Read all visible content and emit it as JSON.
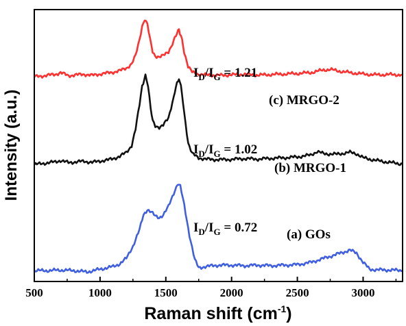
{
  "chart_data": {
    "type": "line",
    "xlabel": "Raman shift (cm",
    "xlabel_sup": "-1",
    "xlabel_end": ")",
    "ylabel": "Intensity (a.u.)",
    "xlim": [
      500,
      3300
    ],
    "ylim": [
      0,
      1
    ],
    "xticks": [
      "500",
      "1000",
      "1500",
      "2000",
      "2500",
      "3000"
    ],
    "grid": false,
    "legend": "none",
    "series": [
      {
        "label": "(c) MRGO-2",
        "ratio_value": "1.21",
        "color": "#ff3030",
        "points": [
          [
            500,
            0.753
          ],
          [
            580,
            0.757
          ],
          [
            660,
            0.762
          ],
          [
            700,
            0.768
          ],
          [
            760,
            0.757
          ],
          [
            820,
            0.76
          ],
          [
            880,
            0.762
          ],
          [
            940,
            0.758
          ],
          [
            1000,
            0.763
          ],
          [
            1060,
            0.767
          ],
          [
            1100,
            0.77
          ],
          [
            1150,
            0.775
          ],
          [
            1200,
            0.785
          ],
          [
            1240,
            0.8
          ],
          [
            1270,
            0.83
          ],
          [
            1300,
            0.89
          ],
          [
            1320,
            0.94
          ],
          [
            1340,
            0.965
          ],
          [
            1360,
            0.945
          ],
          [
            1380,
            0.89
          ],
          [
            1400,
            0.845
          ],
          [
            1420,
            0.83
          ],
          [
            1450,
            0.826
          ],
          [
            1480,
            0.83
          ],
          [
            1520,
            0.845
          ],
          [
            1560,
            0.885
          ],
          [
            1585,
            0.915
          ],
          [
            1600,
            0.925
          ],
          [
            1615,
            0.905
          ],
          [
            1640,
            0.845
          ],
          [
            1670,
            0.79
          ],
          [
            1700,
            0.77
          ],
          [
            1750,
            0.762
          ],
          [
            1800,
            0.76
          ],
          [
            1900,
            0.758
          ],
          [
            2000,
            0.76
          ],
          [
            2100,
            0.762
          ],
          [
            2200,
            0.759
          ],
          [
            2300,
            0.761
          ],
          [
            2400,
            0.763
          ],
          [
            2500,
            0.765
          ],
          [
            2600,
            0.768
          ],
          [
            2700,
            0.778
          ],
          [
            2750,
            0.78
          ],
          [
            2800,
            0.775
          ],
          [
            2900,
            0.768
          ],
          [
            3000,
            0.763
          ],
          [
            3100,
            0.76
          ],
          [
            3200,
            0.761
          ],
          [
            3300,
            0.76
          ]
        ]
      },
      {
        "label": "(b) MRGO-1",
        "ratio_value": "1.02",
        "color": "#111111",
        "points": [
          [
            500,
            0.43
          ],
          [
            580,
            0.435
          ],
          [
            660,
            0.44
          ],
          [
            700,
            0.445
          ],
          [
            760,
            0.437
          ],
          [
            820,
            0.44
          ],
          [
            880,
            0.442
          ],
          [
            940,
            0.438
          ],
          [
            1000,
            0.443
          ],
          [
            1060,
            0.447
          ],
          [
            1100,
            0.452
          ],
          [
            1150,
            0.46
          ],
          [
            1200,
            0.475
          ],
          [
            1240,
            0.5
          ],
          [
            1270,
            0.56
          ],
          [
            1300,
            0.65
          ],
          [
            1320,
            0.72
          ],
          [
            1345,
            0.755
          ],
          [
            1365,
            0.72
          ],
          [
            1385,
            0.64
          ],
          [
            1400,
            0.59
          ],
          [
            1420,
            0.572
          ],
          [
            1450,
            0.568
          ],
          [
            1480,
            0.575
          ],
          [
            1520,
            0.6
          ],
          [
            1560,
            0.68
          ],
          [
            1585,
            0.73
          ],
          [
            1600,
            0.745
          ],
          [
            1615,
            0.72
          ],
          [
            1640,
            0.62
          ],
          [
            1670,
            0.51
          ],
          [
            1700,
            0.47
          ],
          [
            1750,
            0.455
          ],
          [
            1800,
            0.45
          ],
          [
            1900,
            0.448
          ],
          [
            2000,
            0.449
          ],
          [
            2100,
            0.452
          ],
          [
            2200,
            0.45
          ],
          [
            2300,
            0.453
          ],
          [
            2400,
            0.455
          ],
          [
            2500,
            0.458
          ],
          [
            2600,
            0.465
          ],
          [
            2650,
            0.478
          ],
          [
            2700,
            0.47
          ],
          [
            2800,
            0.468
          ],
          [
            2900,
            0.475
          ],
          [
            2950,
            0.47
          ],
          [
            3000,
            0.455
          ],
          [
            3100,
            0.445
          ],
          [
            3200,
            0.438
          ],
          [
            3300,
            0.432
          ]
        ]
      },
      {
        "label": "(a) GOs",
        "ratio_value": "0.72",
        "color": "#3f5fe0",
        "points": [
          [
            500,
            0.04
          ],
          [
            600,
            0.04
          ],
          [
            700,
            0.042
          ],
          [
            800,
            0.04
          ],
          [
            900,
            0.035
          ],
          [
            1000,
            0.045
          ],
          [
            1100,
            0.055
          ],
          [
            1150,
            0.065
          ],
          [
            1200,
            0.085
          ],
          [
            1250,
            0.13
          ],
          [
            1300,
            0.19
          ],
          [
            1330,
            0.245
          ],
          [
            1360,
            0.265
          ],
          [
            1390,
            0.255
          ],
          [
            1420,
            0.24
          ],
          [
            1450,
            0.235
          ],
          [
            1480,
            0.245
          ],
          [
            1520,
            0.275
          ],
          [
            1560,
            0.325
          ],
          [
            1590,
            0.36
          ],
          [
            1610,
            0.35
          ],
          [
            1640,
            0.28
          ],
          [
            1680,
            0.17
          ],
          [
            1720,
            0.08
          ],
          [
            1750,
            0.05
          ],
          [
            1800,
            0.055
          ],
          [
            1900,
            0.06
          ],
          [
            2000,
            0.06
          ],
          [
            2100,
            0.058
          ],
          [
            2200,
            0.06
          ],
          [
            2300,
            0.058
          ],
          [
            2400,
            0.06
          ],
          [
            2500,
            0.062
          ],
          [
            2600,
            0.07
          ],
          [
            2700,
            0.085
          ],
          [
            2800,
            0.1
          ],
          [
            2850,
            0.108
          ],
          [
            2900,
            0.115
          ],
          [
            2950,
            0.105
          ],
          [
            3000,
            0.07
          ],
          [
            3050,
            0.045
          ],
          [
            3100,
            0.043
          ],
          [
            3200,
            0.042
          ],
          [
            3300,
            0.041
          ]
        ]
      }
    ]
  },
  "annotations": {
    "ratio_I": "I",
    "ratio_D": "D",
    "ratio_slash": "/",
    "ratio_G": "G",
    "ratio_eq": " = "
  }
}
